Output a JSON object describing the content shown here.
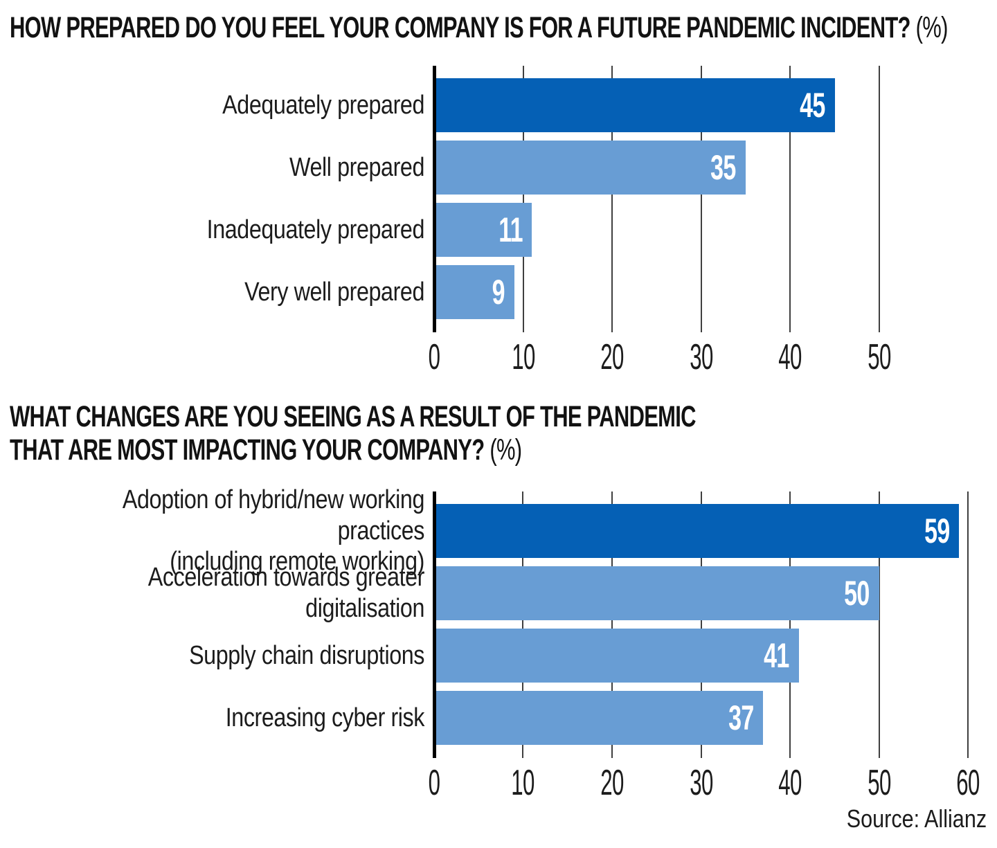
{
  "source": "Source: Allianz",
  "colors": {
    "bar_dark": "#0560b5",
    "bar_light": "#689dd4",
    "grid_line": "#3f3f3f",
    "axis_line": "#000000",
    "value_text": "#ffffff",
    "text": "#1c1c1c"
  },
  "chart_data": [
    {
      "type": "bar",
      "orientation": "horizontal",
      "title": "HOW PREPARED DO YOU FEEL YOUR COMPANY IS FOR A FUTURE PANDEMIC INCIDENT?",
      "unit": "(%)",
      "categories": [
        "Adequately prepared",
        "Well prepared",
        "Inadequately prepared",
        "Very well prepared"
      ],
      "values": [
        45,
        35,
        11,
        9
      ],
      "bar_colors": [
        "dark",
        "light",
        "light",
        "light"
      ],
      "xlim": [
        0,
        50
      ],
      "xticks": [
        0,
        10,
        20,
        30,
        40,
        50
      ],
      "grid": true,
      "legend": "none",
      "value_labels": "inside-end"
    },
    {
      "type": "bar",
      "orientation": "horizontal",
      "title": "WHAT CHANGES ARE YOU SEEING AS A RESULT OF THE PANDEMIC\nTHAT ARE MOST IMPACTING YOUR COMPANY?",
      "unit": "(%)",
      "categories": [
        "Adoption of hybrid/new working practices\n(including remote working)",
        "Acceleration towards greater digitalisation",
        "Supply chain disruptions",
        "Increasing cyber risk"
      ],
      "values": [
        59,
        50,
        41,
        37
      ],
      "bar_colors": [
        "dark",
        "light",
        "light",
        "light"
      ],
      "xlim": [
        0,
        60
      ],
      "xticks": [
        0,
        10,
        20,
        30,
        40,
        50,
        60
      ],
      "grid": true,
      "legend": "none",
      "value_labels": "inside-end"
    }
  ]
}
